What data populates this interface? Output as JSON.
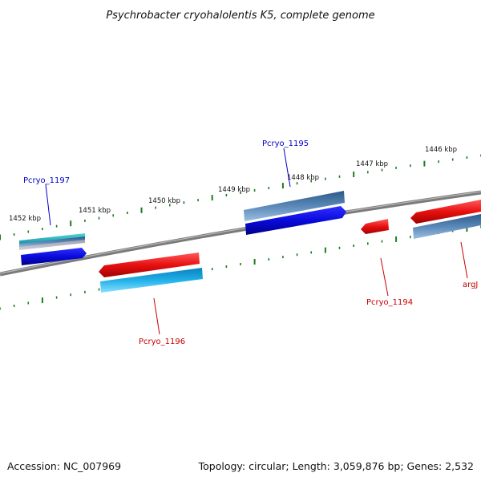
{
  "title": "Psychrobacter cryohalolentis K5, complete genome",
  "footer": {
    "accession": "Accession: NC_007969",
    "topology": "Topology: circular; Length: 3,059,876 bp; Genes: 2,532"
  },
  "ruler_labels": [
    "1452 kbp",
    "1451 kbp",
    "1450 kbp",
    "1449 kbp",
    "1448 kbp",
    "1447 kbp",
    "1446 kbp"
  ],
  "gene_labels": {
    "pcryo_1197": "Pcryo_1197",
    "pcryo_1195": "Pcryo_1195",
    "pcryo_1196": "Pcryo_1196",
    "pcryo_1194": "Pcryo_1194",
    "argj": "argJ"
  },
  "colors": {
    "backbone": "#808080",
    "tick": "#1f7a1f",
    "cds_blue": "#0a0adc",
    "gene_steel": "#4a78a8",
    "cds_red": "#e81010",
    "gene_cyan": "#20b0e8",
    "gene_teal": "#30c0c0",
    "label_blue": "#0000c8",
    "label_red": "#c80000"
  }
}
